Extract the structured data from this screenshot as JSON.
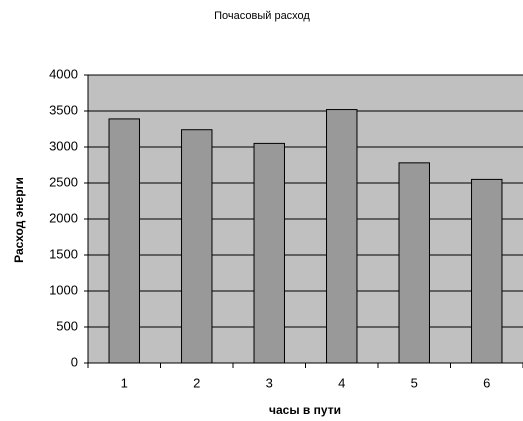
{
  "chart_data": {
    "type": "bar",
    "title": "Почасовый расход",
    "x_label": "часы в пути",
    "y_label": "Расход энерги",
    "categories": [
      "1",
      "2",
      "3",
      "4",
      "5",
      "6"
    ],
    "values": [
      3390,
      3240,
      3050,
      3520,
      2780,
      2550
    ],
    "color": "#999999",
    "plot_background": "#c0c0c0",
    "ylim": [
      0,
      4000
    ],
    "yticks": [
      0,
      500,
      1000,
      1500,
      2000,
      2500,
      3000,
      3500,
      4000
    ],
    "grid": true
  }
}
